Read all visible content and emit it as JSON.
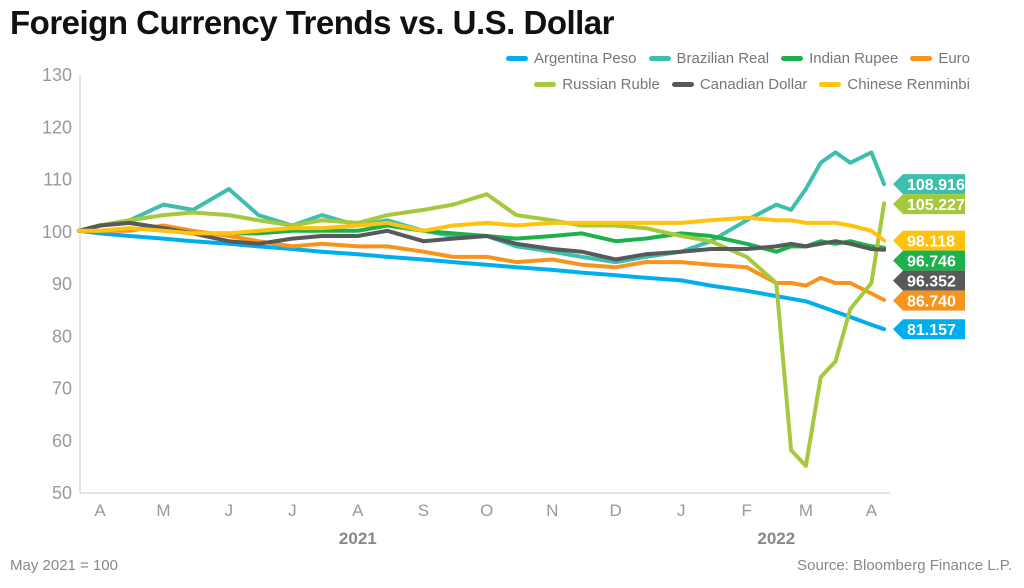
{
  "chart_data": {
    "type": "line",
    "title": "Foreign Currency Trends vs. U.S. Dollar",
    "note": "May 2021 = 100",
    "source": "Source: Bloomberg Finance L.P.",
    "ylim": [
      50,
      130
    ],
    "yticks": [
      50,
      60,
      70,
      80,
      90,
      100,
      110,
      120,
      130
    ],
    "xticks": [
      {
        "label": "A",
        "date": "2021-04-01"
      },
      {
        "label": "M",
        "date": "2021-05-01"
      },
      {
        "label": "J",
        "date": "2021-06-01"
      },
      {
        "label": "J",
        "date": "2021-07-01"
      },
      {
        "label": "A",
        "date": "2021-08-01"
      },
      {
        "label": "S",
        "date": "2021-09-01"
      },
      {
        "label": "O",
        "date": "2021-10-01"
      },
      {
        "label": "N",
        "date": "2021-11-01"
      },
      {
        "label": "D",
        "date": "2021-12-01"
      },
      {
        "label": "J",
        "date": "2022-01-01"
      },
      {
        "label": "F",
        "date": "2022-02-01"
      },
      {
        "label": "M",
        "date": "2022-03-01"
      },
      {
        "label": "A",
        "date": "2022-04-01"
      }
    ],
    "years": [
      {
        "label": "2021",
        "date": "2021-08-01"
      },
      {
        "label": "2022",
        "date": "2022-02-15"
      }
    ],
    "grid": false,
    "legend": "top-right",
    "x": [
      "2021-03-22",
      "2021-04-01",
      "2021-04-15",
      "2021-05-01",
      "2021-05-15",
      "2021-06-01",
      "2021-06-15",
      "2021-07-01",
      "2021-07-15",
      "2021-08-01",
      "2021-08-15",
      "2021-09-01",
      "2021-09-15",
      "2021-10-01",
      "2021-10-15",
      "2021-11-01",
      "2021-11-15",
      "2021-12-01",
      "2021-12-15",
      "2022-01-01",
      "2022-01-15",
      "2022-02-01",
      "2022-02-15",
      "2022-02-22",
      "2022-03-01",
      "2022-03-08",
      "2022-03-15",
      "2022-03-22",
      "2022-04-01",
      "2022-04-07"
    ],
    "series": [
      {
        "name": "Argentina Peso",
        "color": "#00aeef",
        "last": "81.157",
        "values": [
          100,
          99.5,
          99,
          98.5,
          98,
          97.5,
          97,
          96.5,
          96,
          95.5,
          95,
          94.5,
          94,
          93.5,
          93,
          92.5,
          92,
          91.5,
          91,
          90.5,
          89.5,
          88.5,
          87.5,
          87,
          86.5,
          85.5,
          84.5,
          83.5,
          82,
          81.157
        ]
      },
      {
        "name": "Brazilian Real",
        "color": "#3dbfad",
        "last": "108.916",
        "values": [
          100,
          101,
          102,
          105,
          104,
          108,
          103,
          101,
          103,
          101,
          102,
          100,
          99,
          99,
          97,
          96,
          95,
          94,
          95,
          96,
          98,
          102,
          105,
          104,
          108,
          113,
          115,
          113,
          115,
          108.916
        ]
      },
      {
        "name": "Indian Rupee",
        "color": "#1db14b",
        "last": "96.746",
        "values": [
          100,
          101,
          101.5,
          100.5,
          99.5,
          99.5,
          99.5,
          100,
          100,
          100,
          101,
          100,
          99.5,
          99,
          98.5,
          99,
          99.5,
          98,
          98.5,
          99.5,
          99,
          97.5,
          96,
          97,
          97,
          98,
          97.5,
          98,
          97,
          96.746
        ]
      },
      {
        "name": "Euro",
        "color": "#f7941d",
        "last": "86.740",
        "values": [
          100,
          100,
          100,
          101,
          100,
          99,
          98,
          97,
          97.5,
          97,
          97,
          96,
          95,
          95,
          94,
          94.5,
          93.5,
          93,
          94,
          94,
          93.5,
          93,
          90,
          90,
          89.5,
          91,
          90,
          90,
          88,
          86.74
        ]
      },
      {
        "name": "Russian Ruble",
        "color": "#a6c83c",
        "last": "105.227",
        "values": [
          100,
          101,
          102,
          103,
          103.5,
          103,
          102,
          101,
          102,
          101.5,
          103,
          104,
          105,
          107,
          103,
          102,
          101,
          101,
          100.5,
          99,
          98,
          95,
          90,
          58,
          55,
          72,
          75,
          85,
          90,
          105.227
        ]
      },
      {
        "name": "Canadian Dollar",
        "color": "#58595b",
        "last": "96.352",
        "values": [
          100,
          101,
          101.5,
          100.5,
          99.5,
          98,
          97.5,
          98.5,
          99,
          99,
          100,
          98,
          98.5,
          99,
          97.5,
          96.5,
          96,
          94.5,
          95.5,
          96,
          96.5,
          96.5,
          97,
          97.5,
          97,
          97.5,
          98,
          97.5,
          96.5,
          96.352
        ]
      },
      {
        "name": "Chinese Renminbi",
        "color": "#ffc20e",
        "last": "98.118",
        "values": [
          100,
          100,
          100.5,
          100,
          99.5,
          99.5,
          100,
          100.5,
          100.5,
          101,
          101.5,
          100,
          101,
          101.5,
          101,
          101.5,
          101.5,
          101.5,
          101.5,
          101.5,
          102,
          102.5,
          102,
          102,
          101.5,
          101.5,
          101.5,
          101,
          100,
          98.118
        ]
      }
    ]
  }
}
